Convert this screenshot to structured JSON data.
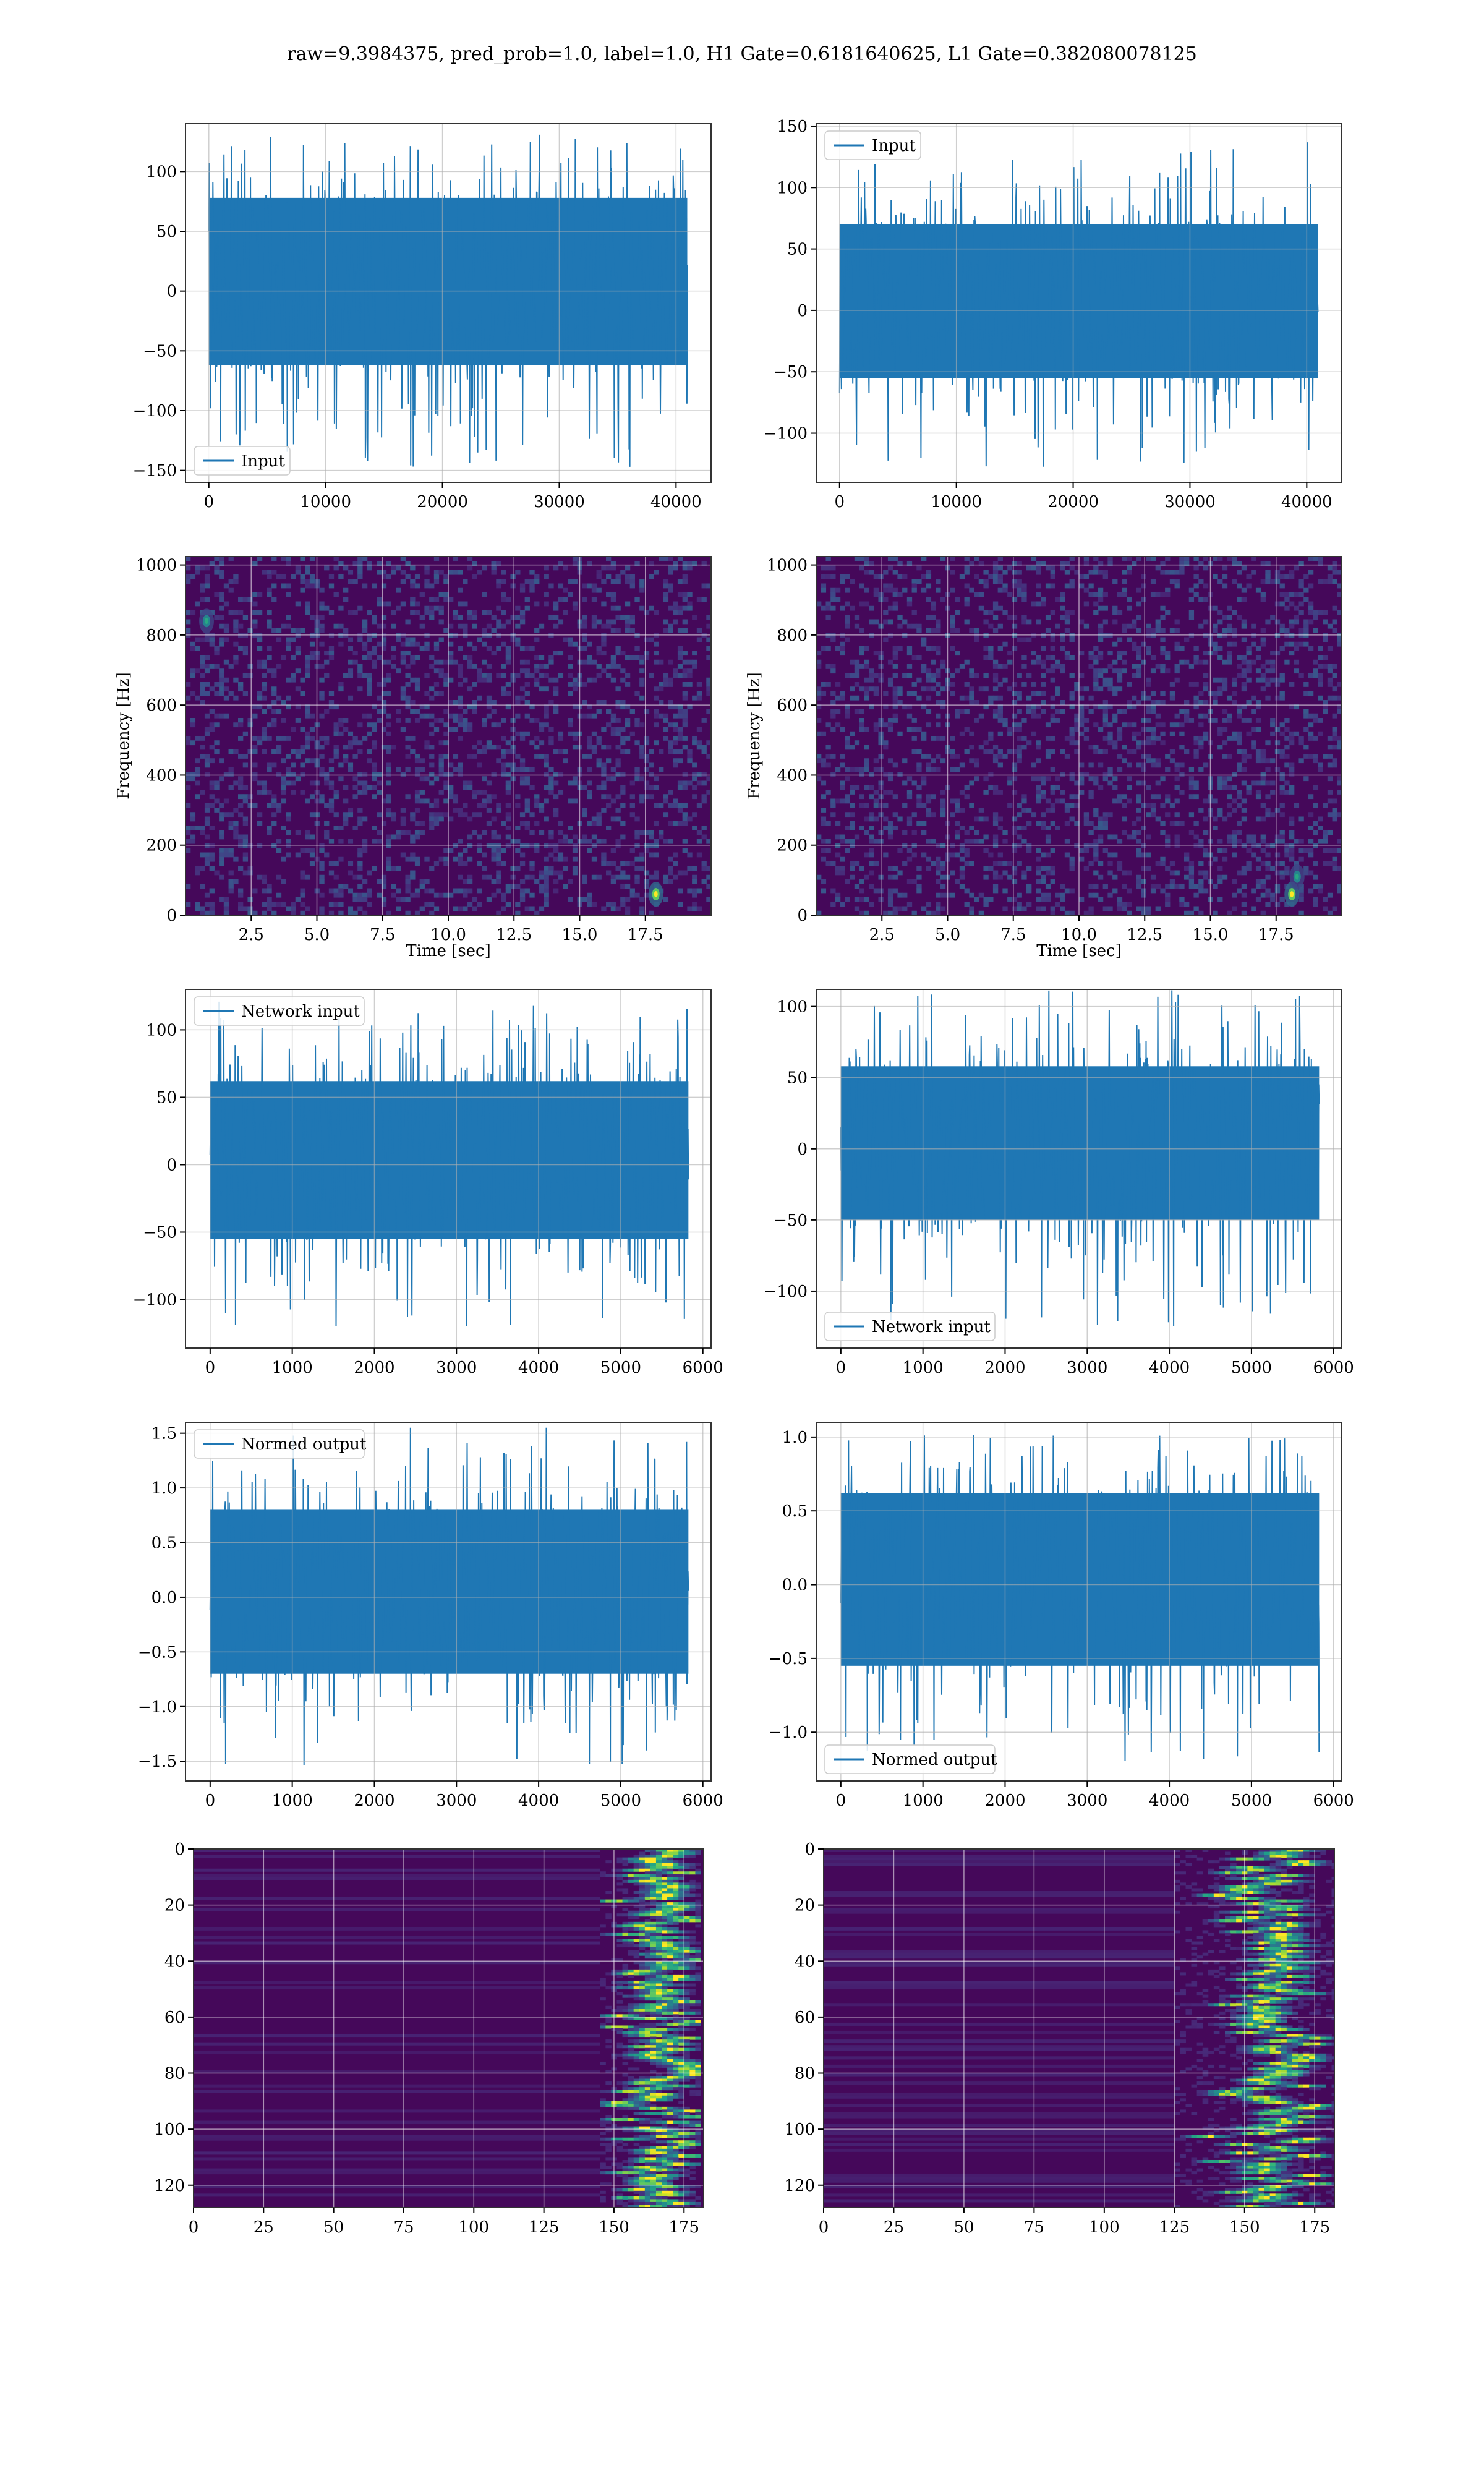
{
  "figure": {
    "title": "raw=9.3984375, pred_prob=1.0, label=1.0, H1 Gate=0.6181640625, L1 Gate=0.382080078125"
  },
  "chart_data": [
    {
      "panel": "row1-left",
      "type": "line",
      "legend": "Input",
      "legend_loc": "lower-left",
      "xlim": [
        -2000,
        43000
      ],
      "xticks": [
        0,
        10000,
        20000,
        30000,
        40000
      ],
      "ylim": [
        -160,
        140
      ],
      "yticks": [
        -150,
        -100,
        -50,
        0,
        50,
        100
      ],
      "series": {
        "x_start": 0,
        "x_end": 40960,
        "color": "#1f77b4",
        "envelope": [
          -62,
          78
        ],
        "extremes": [
          -147,
          132
        ]
      },
      "grid": true
    },
    {
      "panel": "row1-right",
      "type": "line",
      "legend": "Input",
      "legend_loc": "upper-left",
      "xlim": [
        -2000,
        43000
      ],
      "xticks": [
        0,
        10000,
        20000,
        30000,
        40000
      ],
      "ylim": [
        -140,
        152
      ],
      "yticks": [
        -100,
        -50,
        0,
        50,
        100,
        150
      ],
      "series": {
        "x_start": 0,
        "x_end": 40960,
        "color": "#1f77b4",
        "envelope": [
          -55,
          70
        ],
        "extremes": [
          -128,
          140
        ]
      },
      "grid": true
    },
    {
      "panel": "row2-left",
      "type": "heatmap",
      "xlabel": "Time [sec]",
      "ylabel": "Frequency [Hz]",
      "xlim": [
        0,
        20
      ],
      "xticks": [
        2.5,
        5.0,
        7.5,
        10.0,
        12.5,
        15.0,
        17.5
      ],
      "ylim": [
        0,
        1024
      ],
      "yticks": [
        0,
        200,
        400,
        600,
        800,
        1000
      ],
      "colormap": "viridis",
      "grid": true,
      "features": [
        {
          "x": 17.9,
          "y": 60,
          "intensity": 1.0
        },
        {
          "x": 0.8,
          "y": 840,
          "intensity": 0.6
        }
      ]
    },
    {
      "panel": "row2-right",
      "type": "heatmap",
      "xlabel": "Time [sec]",
      "ylabel": "Frequency [Hz]",
      "xlim": [
        0,
        20
      ],
      "xticks": [
        2.5,
        5.0,
        7.5,
        10.0,
        12.5,
        15.0,
        17.5
      ],
      "ylim": [
        0,
        1024
      ],
      "yticks": [
        0,
        200,
        400,
        600,
        800,
        1000
      ],
      "colormap": "viridis",
      "grid": true,
      "features": [
        {
          "x": 18.1,
          "y": 60,
          "intensity": 1.0
        },
        {
          "x": 18.3,
          "y": 110,
          "intensity": 0.6
        }
      ]
    },
    {
      "panel": "row3-left",
      "type": "line",
      "legend": "Network input",
      "legend_loc": "upper-left",
      "xlim": [
        -300,
        6100
      ],
      "xticks": [
        0,
        1000,
        2000,
        3000,
        4000,
        5000,
        6000
      ],
      "ylim": [
        -136,
        130
      ],
      "yticks": [
        -100,
        -50,
        0,
        50,
        100
      ],
      "series": {
        "x_start": 0,
        "x_end": 5824,
        "color": "#1f77b4",
        "envelope": [
          -55,
          62
        ],
        "extremes": [
          -120,
          122
        ]
      },
      "grid": true
    },
    {
      "panel": "row3-right",
      "type": "line",
      "legend": "Network input",
      "legend_loc": "lower-left",
      "xlim": [
        -300,
        6100
      ],
      "xticks": [
        0,
        1000,
        2000,
        3000,
        4000,
        5000,
        6000
      ],
      "ylim": [
        -140,
        112
      ],
      "yticks": [
        -100,
        -50,
        0,
        50,
        100
      ],
      "series": {
        "x_start": 0,
        "x_end": 5824,
        "color": "#1f77b4",
        "envelope": [
          -50,
          58
        ],
        "extremes": [
          -126,
          112
        ]
      },
      "grid": true
    },
    {
      "panel": "row4-left",
      "type": "line",
      "legend": "Normed output",
      "legend_loc": "upper-left",
      "xlim": [
        -300,
        6100
      ],
      "xticks": [
        0,
        1000,
        2000,
        3000,
        4000,
        5000,
        6000
      ],
      "ylim": [
        -1.68,
        1.6
      ],
      "yticks": [
        -1.5,
        -1.0,
        -0.5,
        0.0,
        0.5,
        1.0,
        1.5
      ],
      "series": {
        "x_start": 0,
        "x_end": 5824,
        "color": "#1f77b4",
        "envelope": [
          -0.7,
          0.8
        ],
        "extremes": [
          -1.55,
          1.55
        ]
      },
      "grid": true
    },
    {
      "panel": "row4-right",
      "type": "line",
      "legend": "Normed output",
      "legend_loc": "lower-left",
      "xlim": [
        -300,
        6100
      ],
      "xticks": [
        0,
        1000,
        2000,
        3000,
        4000,
        5000,
        6000
      ],
      "ylim": [
        -1.33,
        1.1
      ],
      "yticks": [
        -1.0,
        -0.5,
        0.0,
        0.5,
        1.0
      ],
      "series": {
        "x_start": 0,
        "x_end": 5824,
        "color": "#1f77b4",
        "envelope": [
          -0.55,
          0.62
        ],
        "extremes": [
          -1.2,
          1.05
        ]
      },
      "grid": true
    },
    {
      "panel": "row5-left",
      "type": "heatmap",
      "xlim": [
        0,
        182
      ],
      "xticks": [
        0,
        25,
        50,
        75,
        100,
        125,
        150,
        175
      ],
      "ylim": [
        128,
        0
      ],
      "yticks": [
        0,
        20,
        40,
        60,
        80,
        100,
        120
      ],
      "colormap": "viridis",
      "grid": true,
      "features": {
        "active_x": [
          145,
          180
        ],
        "peak_x": 165
      }
    },
    {
      "panel": "row5-right",
      "type": "heatmap",
      "xlim": [
        0,
        182
      ],
      "xticks": [
        0,
        25,
        50,
        75,
        100,
        125,
        150,
        175
      ],
      "ylim": [
        128,
        0
      ],
      "yticks": [
        0,
        20,
        40,
        60,
        80,
        100,
        120
      ],
      "colormap": "viridis",
      "grid": true,
      "features": {
        "active_x": [
          125,
          182
        ],
        "peak_x": 160
      }
    }
  ]
}
